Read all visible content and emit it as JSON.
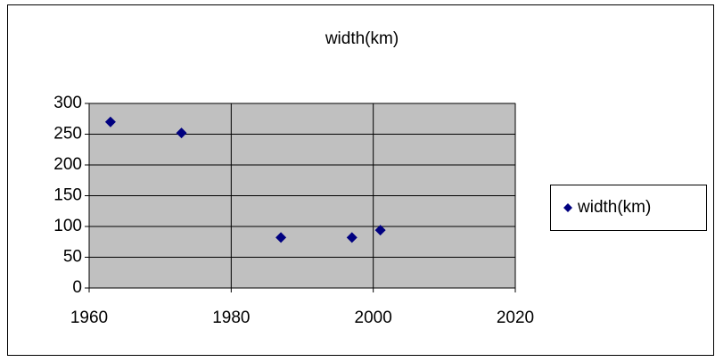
{
  "chart_data": {
    "type": "scatter",
    "title": "width(km)",
    "series": [
      {
        "name": "width(km)",
        "color": "#000080",
        "x": [
          1963,
          1973,
          1987,
          1997,
          2001
        ],
        "values": [
          270,
          252,
          82,
          82,
          94
        ]
      }
    ],
    "xlim": [
      1960,
      2020
    ],
    "xticks": [
      1960,
      1980,
      2000,
      2020
    ],
    "ylim": [
      0,
      300
    ],
    "yticks": [
      0,
      50,
      100,
      150,
      200,
      250,
      300
    ],
    "grid": true,
    "legend": "right",
    "plot_background": "#c0c0c0"
  }
}
